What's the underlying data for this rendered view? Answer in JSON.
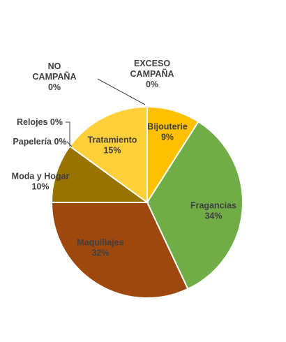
{
  "chart_data": {
    "type": "pie",
    "title": "",
    "slices": [
      {
        "name": "Bijouterie",
        "name_lines": [
          "Bijouterie"
        ],
        "value": 9,
        "label": "9%",
        "color": "#FFC000",
        "text_color": "#404040"
      },
      {
        "name": "Fragancias",
        "name_lines": [
          "Fragancias"
        ],
        "value": 34,
        "label": "34%",
        "color": "#70AD47",
        "text_color": "#404040"
      },
      {
        "name": "Maquillajes",
        "name_lines": [
          "Maquillajes"
        ],
        "value": 32,
        "label": "32%",
        "color": "#9E480E",
        "text_color": "#404040"
      },
      {
        "name": "Moda y Hogar",
        "name_lines": [
          "Moda y Hogar"
        ],
        "value": 10,
        "label": "10%",
        "color": "#997300",
        "text_color": "#404040"
      },
      {
        "name": "Papelería",
        "name_lines": [
          "Papelería 0%"
        ],
        "value": 0,
        "label": "0%",
        "color": "#636363",
        "text_color": "#404040"
      },
      {
        "name": "Relojes",
        "name_lines": [
          "Relojes 0%"
        ],
        "value": 0,
        "label": "0%",
        "color": "#264478",
        "text_color": "#404040"
      },
      {
        "name": "NO CAMPAÑA",
        "name_lines": [
          "NO",
          "CAMPAÑA"
        ],
        "value": 0,
        "label": "0%",
        "color": "#43682B",
        "text_color": "#404040"
      },
      {
        "name": "Tratamiento",
        "name_lines": [
          "Tratamiento"
        ],
        "value": 15,
        "label": "15%",
        "color": "#FFD03A",
        "text_color": "#404040"
      },
      {
        "name": "EXCESO CAMPAÑA",
        "name_lines": [
          "EXCESO",
          "CAMPAÑA"
        ],
        "value": 0,
        "label": "0%",
        "color": "#ED7D31",
        "text_color": "#404040"
      }
    ]
  }
}
